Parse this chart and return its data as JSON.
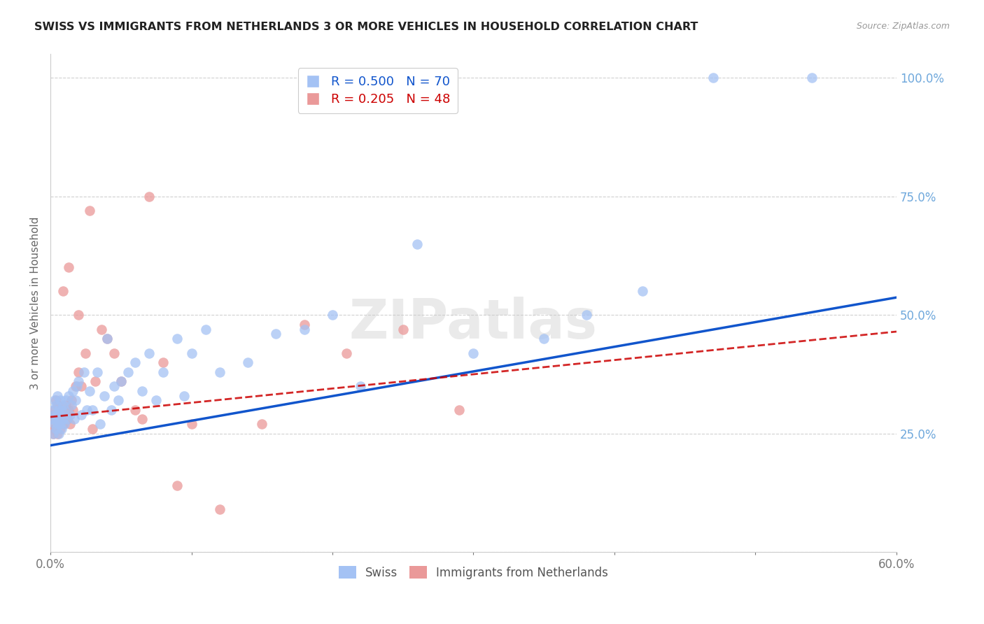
{
  "title": "SWISS VS IMMIGRANTS FROM NETHERLANDS 3 OR MORE VEHICLES IN HOUSEHOLD CORRELATION CHART",
  "source": "Source: ZipAtlas.com",
  "ylabel": "3 or more Vehicles in Household",
  "xlim": [
    0.0,
    0.6
  ],
  "ylim": [
    0.0,
    1.05
  ],
  "yticks_right": [
    0.0,
    0.25,
    0.5,
    0.75,
    1.0
  ],
  "yticklabels_right": [
    "",
    "25.0%",
    "50.0%",
    "75.0%",
    "100.0%"
  ],
  "grid_color": "#d0d0d0",
  "background_color": "#ffffff",
  "blue_color": "#a4c2f4",
  "pink_color": "#ea9999",
  "blue_line_color": "#1155cc",
  "pink_line_color": "#cc0000",
  "legend_blue_R": "0.500",
  "legend_blue_N": "70",
  "legend_pink_R": "0.205",
  "legend_pink_N": "48",
  "watermark": "ZIPatlas",
  "blue_intercept": 0.225,
  "blue_slope": 0.52,
  "pink_intercept": 0.285,
  "pink_slope": 0.3,
  "swiss_x": [
    0.001,
    0.002,
    0.002,
    0.003,
    0.003,
    0.003,
    0.004,
    0.004,
    0.004,
    0.005,
    0.005,
    0.005,
    0.006,
    0.006,
    0.006,
    0.007,
    0.007,
    0.007,
    0.008,
    0.008,
    0.009,
    0.009,
    0.01,
    0.01,
    0.011,
    0.012,
    0.013,
    0.014,
    0.015,
    0.016,
    0.017,
    0.018,
    0.019,
    0.02,
    0.022,
    0.024,
    0.026,
    0.028,
    0.03,
    0.033,
    0.035,
    0.038,
    0.04,
    0.043,
    0.045,
    0.048,
    0.05,
    0.055,
    0.06,
    0.065,
    0.07,
    0.075,
    0.08,
    0.09,
    0.095,
    0.1,
    0.11,
    0.12,
    0.14,
    0.16,
    0.18,
    0.2,
    0.22,
    0.26,
    0.3,
    0.35,
    0.38,
    0.42,
    0.47,
    0.54
  ],
  "swiss_y": [
    0.28,
    0.3,
    0.25,
    0.27,
    0.29,
    0.32,
    0.26,
    0.28,
    0.31,
    0.27,
    0.29,
    0.33,
    0.25,
    0.28,
    0.3,
    0.27,
    0.29,
    0.32,
    0.26,
    0.3,
    0.28,
    0.31,
    0.27,
    0.3,
    0.32,
    0.28,
    0.33,
    0.29,
    0.31,
    0.34,
    0.28,
    0.32,
    0.35,
    0.36,
    0.29,
    0.38,
    0.3,
    0.34,
    0.3,
    0.38,
    0.27,
    0.33,
    0.45,
    0.3,
    0.35,
    0.32,
    0.36,
    0.38,
    0.4,
    0.34,
    0.42,
    0.32,
    0.38,
    0.45,
    0.33,
    0.42,
    0.47,
    0.38,
    0.4,
    0.46,
    0.47,
    0.5,
    0.35,
    0.65,
    0.42,
    0.45,
    0.5,
    0.55,
    1.0,
    1.0
  ],
  "nl_x": [
    0.001,
    0.002,
    0.002,
    0.003,
    0.003,
    0.004,
    0.004,
    0.005,
    0.005,
    0.006,
    0.006,
    0.007,
    0.007,
    0.008,
    0.009,
    0.01,
    0.011,
    0.012,
    0.013,
    0.014,
    0.015,
    0.016,
    0.018,
    0.02,
    0.022,
    0.025,
    0.028,
    0.032,
    0.036,
    0.04,
    0.045,
    0.05,
    0.06,
    0.07,
    0.08,
    0.09,
    0.1,
    0.12,
    0.15,
    0.18,
    0.21,
    0.25,
    0.29,
    0.02,
    0.03,
    0.065,
    0.013,
    0.009
  ],
  "nl_y": [
    0.27,
    0.25,
    0.29,
    0.26,
    0.3,
    0.28,
    0.32,
    0.25,
    0.31,
    0.27,
    0.29,
    0.26,
    0.3,
    0.28,
    0.27,
    0.29,
    0.31,
    0.28,
    0.3,
    0.27,
    0.32,
    0.3,
    0.35,
    0.38,
    0.35,
    0.42,
    0.72,
    0.36,
    0.47,
    0.45,
    0.42,
    0.36,
    0.3,
    0.75,
    0.4,
    0.14,
    0.27,
    0.09,
    0.27,
    0.48,
    0.42,
    0.47,
    0.3,
    0.5,
    0.26,
    0.28,
    0.6,
    0.55
  ]
}
